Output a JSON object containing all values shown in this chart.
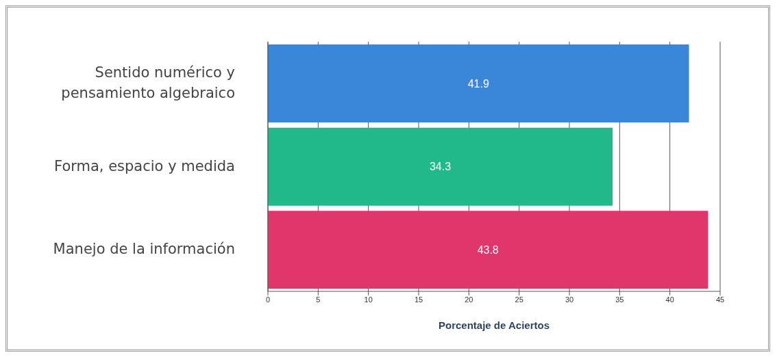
{
  "chart_data": {
    "type": "bar",
    "orientation": "horizontal",
    "xlabel": "Porcentaje de Aciertos",
    "categories": [
      "Sentido numérico y pensamiento algebraico",
      "Forma, espacio y medida",
      "Manejo de la información"
    ],
    "values": [
      41.9,
      34.3,
      43.8
    ],
    "colors": [
      "#3a87d9",
      "#22b98a",
      "#e0366c"
    ],
    "xlim": [
      0,
      45
    ],
    "xticks": [
      0,
      5,
      10,
      15,
      20,
      25,
      30,
      35,
      40,
      45
    ],
    "grid": "x",
    "data_labels": true
  }
}
